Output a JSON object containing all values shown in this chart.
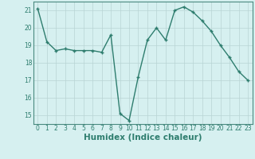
{
  "x": [
    0,
    1,
    2,
    3,
    4,
    5,
    6,
    7,
    8,
    9,
    10,
    11,
    12,
    13,
    14,
    15,
    16,
    17,
    18,
    19,
    20,
    21,
    22,
    23
  ],
  "y": [
    21.1,
    19.2,
    18.7,
    18.8,
    18.7,
    18.7,
    18.7,
    18.6,
    19.6,
    15.1,
    14.7,
    17.2,
    19.3,
    20.0,
    19.3,
    21.0,
    21.2,
    20.9,
    20.4,
    19.8,
    19.0,
    18.3,
    17.5,
    17.0
  ],
  "line_color": "#2e7d6e",
  "marker": "+",
  "marker_size": 3.5,
  "marker_lw": 1.0,
  "bg_color": "#d6f0f0",
  "grid_color": "#b8d4d4",
  "xlabel": "Humidex (Indice chaleur)",
  "ylim": [
    14.5,
    21.5
  ],
  "xlim": [
    -0.5,
    23.5
  ],
  "yticks": [
    15,
    16,
    17,
    18,
    19,
    20,
    21
  ],
  "xticks": [
    0,
    1,
    2,
    3,
    4,
    5,
    6,
    7,
    8,
    9,
    10,
    11,
    12,
    13,
    14,
    15,
    16,
    17,
    18,
    19,
    20,
    21,
    22,
    23
  ],
  "tick_fontsize": 5.5,
  "xlabel_fontsize": 7.5,
  "line_width": 1.0,
  "spine_color": "#4a8a80"
}
